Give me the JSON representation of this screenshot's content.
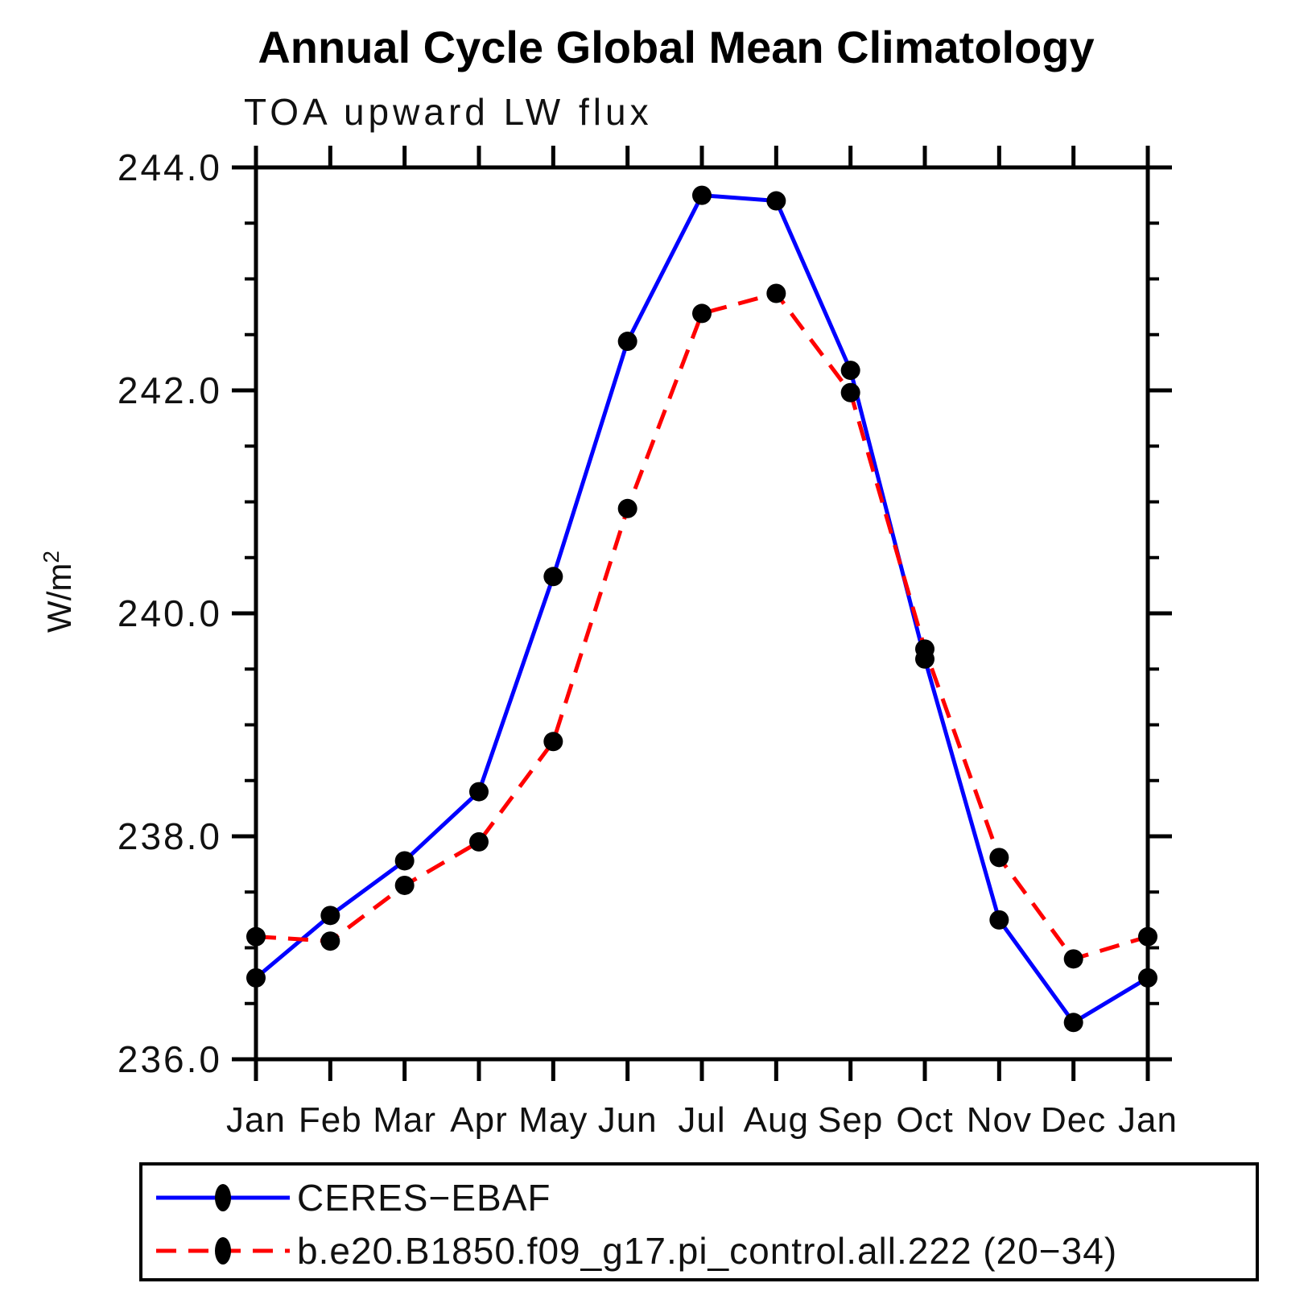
{
  "chart_data": {
    "type": "line",
    "title": "Annual Cycle Global Mean Climatology",
    "subtitle": "TOA upward LW flux",
    "ylabel": {
      "base": "W/m",
      "sup": "2"
    },
    "xlabel": "",
    "categories": [
      "Jan",
      "Feb",
      "Mar",
      "Apr",
      "May",
      "Jun",
      "Jul",
      "Aug",
      "Sep",
      "Oct",
      "Nov",
      "Dec",
      "Jan"
    ],
    "ylim": [
      236.0,
      244.0
    ],
    "yticks": [
      {
        "value": 236.0,
        "label": "236.0"
      },
      {
        "value": 238.0,
        "label": "238.0"
      },
      {
        "value": 240.0,
        "label": "240.0"
      },
      {
        "value": 242.0,
        "label": "242.0"
      },
      {
        "value": 244.0,
        "label": "244.0"
      }
    ],
    "ytick_minor_step": 0.5,
    "grid": false,
    "legend_position": "bottom-left-box",
    "series": [
      {
        "name": "CERES−EBAF",
        "color": "#0000ff",
        "line_style": "solid",
        "marker": "filled-circle",
        "marker_color": "#000000",
        "values": [
          236.73,
          237.29,
          237.78,
          238.4,
          240.33,
          242.44,
          243.75,
          243.7,
          242.18,
          239.59,
          237.25,
          236.33,
          236.73
        ]
      },
      {
        "name": "b.e20.B1850.f09_g17.pi_control.all.222 (20−34)",
        "color": "#ff0000",
        "line_style": "dashed",
        "marker": "filled-circle",
        "marker_color": "#000000",
        "values": [
          237.1,
          237.06,
          237.56,
          237.95,
          238.85,
          240.94,
          242.69,
          242.87,
          241.98,
          239.68,
          237.81,
          236.9,
          237.1
        ]
      }
    ]
  }
}
